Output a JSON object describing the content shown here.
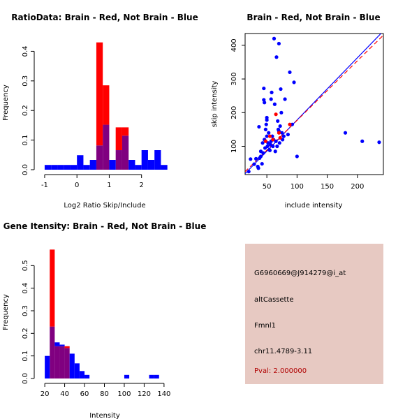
{
  "chart_data": [
    {
      "type": "histogram",
      "title": "RatioData: Brain - Red, Not Brain - Blue",
      "xlabel": "Log2 Ratio Skip/Include",
      "ylabel": "Frequency",
      "xlim": [
        -1.15,
        2.85
      ],
      "ylim": [
        0,
        0.46
      ],
      "xticks": [
        -1,
        0,
        1,
        2
      ],
      "yticks": [
        0.0,
        0.1,
        0.2,
        0.3,
        0.4
      ],
      "ytick_labels": [
        "0.0",
        "0.1",
        "0.2",
        "0.3",
        "0.4"
      ],
      "series": [
        {
          "name": "Brain",
          "color": "#ff0000",
          "bins": [
            [
              0.6,
              0.8,
              0.43
            ],
            [
              0.8,
              1.0,
              0.285
            ],
            [
              1.2,
              1.4,
              0.143
            ],
            [
              1.4,
              1.6,
              0.143
            ]
          ]
        },
        {
          "name": "Not Brain",
          "color": "#0000ff",
          "bins": [
            [
              -1.0,
              -0.8,
              0.016
            ],
            [
              -0.8,
              -0.6,
              0.016
            ],
            [
              -0.6,
              -0.4,
              0.016
            ],
            [
              -0.4,
              -0.2,
              0.016
            ],
            [
              -0.2,
              0.0,
              0.016
            ],
            [
              0.0,
              0.2,
              0.049
            ],
            [
              0.2,
              0.4,
              0.016
            ],
            [
              0.4,
              0.6,
              0.033
            ],
            [
              0.6,
              0.8,
              0.082
            ],
            [
              0.8,
              1.0,
              0.152
            ],
            [
              1.0,
              1.2,
              0.033
            ],
            [
              1.2,
              1.4,
              0.066
            ],
            [
              1.4,
              1.6,
              0.115
            ],
            [
              1.6,
              1.8,
              0.033
            ],
            [
              1.8,
              2.0,
              0.016
            ],
            [
              2.0,
              2.2,
              0.066
            ],
            [
              2.2,
              2.4,
              0.033
            ],
            [
              2.4,
              2.6,
              0.066
            ],
            [
              2.6,
              2.8,
              0.016
            ]
          ]
        }
      ],
      "overlap_color": "#800080"
    },
    {
      "type": "scatter",
      "title": "Brain - Red, Not Brain - Blue",
      "xlabel": "include intensity",
      "ylabel": "skip intensity",
      "xlim": [
        14,
        243
      ],
      "ylim": [
        16,
        435
      ],
      "xticks": [
        50,
        100,
        150,
        200
      ],
      "yticks": [
        100,
        200,
        300,
        400
      ],
      "series": [
        {
          "name": "Not Brain",
          "color": "#0000ff",
          "points": [
            [
              20,
              25
            ],
            [
              23,
              62
            ],
            [
              29,
              47
            ],
            [
              32,
              63
            ],
            [
              35,
              40
            ],
            [
              36,
              35
            ],
            [
              37,
              158
            ],
            [
              38,
              65
            ],
            [
              40,
              70
            ],
            [
              40,
              85
            ],
            [
              42,
              48
            ],
            [
              43,
              110
            ],
            [
              44,
              80
            ],
            [
              45,
              272
            ],
            [
              45,
              238
            ],
            [
              46,
              230
            ],
            [
              46,
              120
            ],
            [
              47,
              95
            ],
            [
              48,
              150
            ],
            [
              49,
              165
            ],
            [
              50,
              178
            ],
            [
              50,
              185
            ],
            [
              50,
              130
            ],
            [
              51,
              100
            ],
            [
              52,
              110
            ],
            [
              53,
              140
            ],
            [
              54,
              90
            ],
            [
              55,
              88
            ],
            [
              56,
              105
            ],
            [
              57,
              115
            ],
            [
              57,
              240
            ],
            [
              58,
              260
            ],
            [
              59,
              130
            ],
            [
              60,
              100
            ],
            [
              61,
              120
            ],
            [
              62,
              420
            ],
            [
              63,
              225
            ],
            [
              64,
              85
            ],
            [
              65,
              115
            ],
            [
              66,
              365
            ],
            [
              67,
              100
            ],
            [
              68,
              175
            ],
            [
              69,
              150
            ],
            [
              70,
              405
            ],
            [
              70,
              145
            ],
            [
              71,
              110
            ],
            [
              72,
              160
            ],
            [
              73,
              270
            ],
            [
              74,
              200
            ],
            [
              75,
              140
            ],
            [
              76,
              120
            ],
            [
              78,
              130
            ],
            [
              80,
              240
            ],
            [
              85,
              135
            ],
            [
              88,
              320
            ],
            [
              92,
              165
            ],
            [
              95,
              290
            ],
            [
              100,
              70
            ],
            [
              180,
              140
            ],
            [
              208,
              115
            ],
            [
              236,
              112
            ]
          ]
        },
        {
          "name": "Brain",
          "color": "#ff0000",
          "points": [
            [
              48,
              115
            ],
            [
              55,
              130
            ],
            [
              60,
              120
            ],
            [
              65,
              195
            ],
            [
              70,
              140
            ],
            [
              72,
              125
            ],
            [
              88,
              165
            ]
          ]
        }
      ],
      "fit_lines": [
        {
          "name": "Not Brain fit",
          "color": "#0000ff",
          "style": "solid",
          "intercept": -7.0,
          "slope": 1.85
        },
        {
          "name": "Brain fit",
          "color": "#ff0000",
          "style": "dashed",
          "intercept": 0.0,
          "slope": 1.77
        }
      ]
    },
    {
      "type": "histogram",
      "title": "Gene Itensity: Brain - Red, Not Brain - Blue",
      "xlabel": "Intensity",
      "ylabel": "Frequency",
      "xlim": [
        15,
        145
      ],
      "ylim": [
        0,
        0.6
      ],
      "xticks": [
        20,
        40,
        60,
        80,
        100,
        120,
        140
      ],
      "yticks": [
        0.0,
        0.1,
        0.2,
        0.3,
        0.4,
        0.5
      ],
      "ytick_labels": [
        "0.0",
        "0.1",
        "0.2",
        "0.3",
        "0.4",
        "0.5"
      ],
      "series": [
        {
          "name": "Brain",
          "color": "#ff0000",
          "bins": [
            [
              25,
              30,
              0.571
            ],
            [
              30,
              35,
              0.143
            ],
            [
              35,
              40,
              0.143
            ],
            [
              40,
              45,
              0.143
            ]
          ]
        },
        {
          "name": "Not Brain",
          "color": "#0000ff",
          "bins": [
            [
              20,
              25,
              0.1
            ],
            [
              25,
              30,
              0.23
            ],
            [
              30,
              35,
              0.16
            ],
            [
              35,
              40,
              0.15
            ],
            [
              40,
              45,
              0.135
            ],
            [
              45,
              50,
              0.11
            ],
            [
              50,
              55,
              0.067
            ],
            [
              55,
              60,
              0.033
            ],
            [
              60,
              65,
              0.016
            ],
            [
              100,
              105,
              0.016
            ],
            [
              125,
              130,
              0.016
            ],
            [
              130,
              135,
              0.016
            ]
          ]
        }
      ],
      "overlap_color": "#800080"
    }
  ],
  "info": {
    "probe_id": "G6960669@J914279@i_at",
    "event_type": "altCassette",
    "gene": "Fmnl1",
    "location": "chr11.4789-3.11",
    "pval": "Pval: 2.000000",
    "panel_color": "#e7c9c2"
  }
}
